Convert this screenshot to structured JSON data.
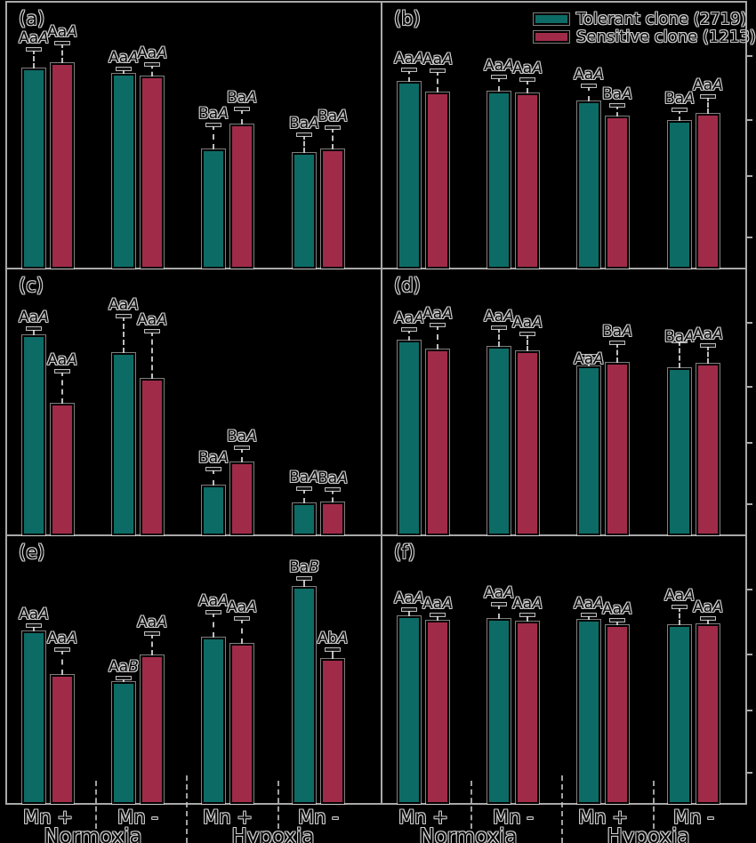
{
  "figure_title": "Six-panel bar figure comparing two Daphnia clones",
  "legend": {
    "items": [
      {
        "label": "Tolerant clone (2719)",
        "color": "#0d6b66"
      },
      {
        "label": "Sensitive clone (1213)",
        "color": "#a02b48"
      }
    ]
  },
  "x_axis": {
    "tick_labels": [
      "Mn +",
      "Mn -",
      "Mn +",
      "Mn -"
    ],
    "group_labels": [
      "Normoxia",
      "Hypoxia"
    ]
  },
  "colors": {
    "background": "#000000",
    "tolerant": "#0d6b66",
    "sensitive": "#a02b48",
    "axis": "#a8a8a8",
    "text_halo": "#cdcdcd",
    "text_fill": "#060606"
  },
  "chart_data": {
    "type": "bar",
    "note": "No numeric y-axis labels are visible (cropped); values are bar heights as fraction of panel height, errors are upper error-bar lengths as fraction of panel height. Significance letters shown above each bar (third letter italic).",
    "categories": [
      "Mn + Normoxia",
      "Mn - Normoxia",
      "Mn + Hypoxia",
      "Mn - Hypoxia"
    ],
    "series_names": [
      "Tolerant clone (2719)",
      "Sensitive clone (1213)"
    ],
    "panels": [
      {
        "label": "(a)",
        "row": 0,
        "col": 0,
        "tolerant": {
          "values": [
            0.75,
            0.73,
            0.447,
            0.433
          ],
          "errors": [
            0.073,
            0.02,
            0.093,
            0.07
          ],
          "sig": [
            "AaA",
            "AaA",
            "BaA",
            "BaA"
          ]
        },
        "sensitive": {
          "values": [
            0.77,
            0.72,
            0.54,
            0.447
          ],
          "errors": [
            0.077,
            0.047,
            0.06,
            0.083
          ],
          "sig": [
            "AaA",
            "AaA",
            "BaA",
            "BaA"
          ]
        }
      },
      {
        "label": "(b)",
        "row": 0,
        "col": 1,
        "tolerant": {
          "values": [
            0.7,
            0.663,
            0.627,
            0.553
          ],
          "errors": [
            0.047,
            0.057,
            0.06,
            0.043
          ],
          "sig": [
            "AaA",
            "AaA",
            "AaA",
            "BaA"
          ]
        },
        "sensitive": {
          "values": [
            0.66,
            0.657,
            0.57,
            0.58
          ],
          "errors": [
            0.083,
            0.053,
            0.043,
            0.067
          ],
          "sig": [
            "AaA",
            "AaA",
            "BaA",
            "AaA"
          ]
        }
      },
      {
        "label": "(c)",
        "row": 1,
        "col": 0,
        "tolerant": {
          "values": [
            0.75,
            0.683,
            0.187,
            0.12
          ],
          "errors": [
            0.027,
            0.14,
            0.063,
            0.057
          ],
          "sig": [
            "AaA",
            "AaA",
            "BaA",
            "BaA"
          ]
        },
        "sensitive": {
          "values": [
            0.493,
            0.587,
            0.273,
            0.123
          ],
          "errors": [
            0.123,
            0.18,
            0.057,
            0.05
          ],
          "sig": [
            "AaA",
            "AaA",
            "BaA",
            "BaA"
          ]
        }
      },
      {
        "label": "(d)",
        "row": 1,
        "col": 1,
        "tolerant": {
          "values": [
            0.73,
            0.707,
            0.633,
            0.627
          ],
          "errors": [
            0.043,
            0.073,
            0.04,
            0.103
          ],
          "sig": [
            "AaA",
            "AaA",
            "AaA",
            "BaA"
          ],
          "sig_dy": [
            0,
            0,
            16,
            8
          ]
        },
        "sensitive": {
          "values": [
            0.697,
            0.69,
            0.647,
            0.643
          ],
          "errors": [
            0.093,
            0.067,
            0.077,
            0.07
          ],
          "sig": [
            "AaA",
            "AaA",
            "BaA",
            "AaA"
          ]
        }
      },
      {
        "label": "(e)",
        "row": 2,
        "col": 0,
        "tolerant": {
          "values": [
            0.642,
            0.454,
            0.62,
            0.808
          ],
          "errors": [
            0.023,
            0.017,
            0.096,
            0.033
          ],
          "sig": [
            "AaA",
            "AaB",
            "AaA",
            "BaB"
          ]
        },
        "sensitive": {
          "values": [
            0.48,
            0.553,
            0.596,
            0.54
          ],
          "errors": [
            0.096,
            0.083,
            0.096,
            0.037
          ],
          "sig": [
            "AaA",
            "AaA",
            "AaA",
            "AbA"
          ]
        }
      },
      {
        "label": "(f)",
        "row": 2,
        "col": 1,
        "tolerant": {
          "values": [
            0.7,
            0.69,
            0.685,
            0.666
          ],
          "errors": [
            0.027,
            0.057,
            0.02,
            0.07
          ],
          "sig": [
            "AaA",
            "AaA",
            "AaA",
            "AaA"
          ]
        },
        "sensitive": {
          "values": [
            0.682,
            0.679,
            0.666,
            0.669
          ],
          "errors": [
            0.023,
            0.027,
            0.02,
            0.023
          ],
          "sig": [
            "AaA",
            "AaA",
            "AaA",
            "AaA"
          ]
        }
      }
    ],
    "layout": {
      "grid": "3 rows x 2 columns, shared axes",
      "legend_position": "top-right of panel (b)",
      "gridlines": false
    }
  }
}
